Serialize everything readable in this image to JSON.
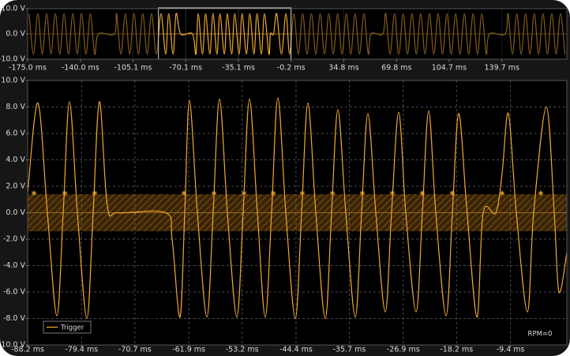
{
  "chart_data": [
    {
      "type": "line",
      "xlim": [
        -175.0,
        182.8
      ],
      "ylim": [
        -10,
        10
      ],
      "xticks": [
        {
          "value": -175.0,
          "label": "-175.0 ms"
        },
        {
          "value": -140.0,
          "label": "-140.0 ms"
        },
        {
          "value": -105.1,
          "label": "-105.1 ms"
        },
        {
          "value": -70.1,
          "label": "-70.1 ms"
        },
        {
          "value": -35.1,
          "label": "-35.1 ms"
        },
        {
          "value": -0.2,
          "label": "-0.2 ms"
        },
        {
          "value": 34.8,
          "label": "34.8 ms"
        },
        {
          "value": 69.8,
          "label": "69.8 ms"
        },
        {
          "value": 104.7,
          "label": "104.7 ms"
        },
        {
          "value": 139.7,
          "label": "139.7 ms"
        }
      ],
      "yticks": [
        {
          "value": 10,
          "label": "10.0 V"
        },
        {
          "value": 0,
          "label": "0.0 V"
        },
        {
          "value": -10,
          "label": "-10.0 V"
        }
      ],
      "grid": true,
      "selection": [
        -88.2,
        -0.2
      ],
      "series": [
        {
          "color": "#f0a830",
          "x": [
            -174.0,
            -171.1,
            -168.2,
            -165.3,
            -162.4,
            -159.5,
            -156.6,
            -153.7,
            -150.8,
            -147.9,
            -145.0,
            -142.1,
            -139.2,
            -136.3,
            -133.4,
            -130.5,
            -128.0,
            -117.4,
            -116.0,
            -113.1,
            -110.2,
            -107.3,
            -104.4,
            -101.5,
            -98.6,
            -95.7,
            -92.8,
            -89.6,
            -86.5,
            -83.4,
            -81.4,
            -78.5,
            -76.5,
            -73.4,
            -65.6,
            -63.3,
            -61.8,
            -59.0,
            -56.9,
            -54.1,
            -52.0,
            -49.4,
            -47.4,
            -44.5,
            -42.5,
            -39.6,
            -37.6,
            -34.7,
            -32.7,
            -29.8,
            -27.6,
            -24.8,
            -22.8,
            -19.9,
            -17.9,
            -14.9,
            -13.9,
            -11.8,
            -9.7,
            -6.6,
            -3.6,
            -1.2,
            1.7,
            4.6,
            7.5,
            10.4,
            13.3,
            16.2,
            19.1,
            22.0,
            24.9,
            27.8,
            30.7,
            33.6,
            36.5,
            39.4,
            42.3,
            45.2,
            48.1,
            51.0,
            52.9,
            60.7,
            62.6,
            65.5,
            68.4,
            71.3,
            74.2,
            77.1,
            80.0,
            82.9,
            85.8,
            88.7,
            91.6,
            94.5,
            97.4,
            100.3,
            103.2,
            106.1,
            109.0,
            111.9,
            114.8,
            117.7,
            120.6,
            123.5,
            126.4,
            129.3,
            131.4,
            141.9,
            143.8,
            146.7,
            149.6,
            152.5,
            155.4,
            158.3,
            161.2,
            164.1,
            167.0,
            169.9,
            172.8,
            175.7,
            178.6,
            181.5
          ],
          "values": [
            8,
            -8,
            8,
            -8,
            8,
            -8,
            8,
            -8,
            8,
            -8,
            8,
            -8,
            8,
            -8,
            8,
            -8,
            0,
            0,
            8,
            -8,
            8,
            -8,
            8,
            -8,
            8,
            -8,
            8,
            -8,
            8,
            -8,
            8,
            -8,
            8,
            0,
            0,
            -8,
            8,
            -8,
            8,
            -8,
            8,
            -8,
            8,
            -8,
            8,
            -8,
            8,
            -8,
            8,
            -8,
            8,
            -8,
            8,
            -8,
            8,
            -8,
            0,
            0,
            8,
            -8,
            8,
            -8,
            8,
            -8,
            8,
            -8,
            8,
            -8,
            8,
            -8,
            8,
            -8,
            8,
            -8,
            8,
            -8,
            8,
            -8,
            8,
            -8,
            0,
            0,
            8,
            -8,
            8,
            -8,
            8,
            -8,
            8,
            -8,
            8,
            -8,
            8,
            -8,
            8,
            -8,
            8,
            -8,
            8,
            -8,
            8,
            -8,
            8,
            -8,
            8,
            -8,
            0,
            0,
            8,
            -8,
            8,
            -8,
            8,
            -8,
            8,
            -8,
            8,
            -8,
            8,
            -8,
            8,
            -8
          ]
        }
      ]
    },
    {
      "type": "line",
      "xlim": [
        -88.2,
        -0.2
      ],
      "ylim": [
        -10,
        10
      ],
      "xticks": [
        {
          "value": -88.2,
          "label": "-88.2 ms"
        },
        {
          "value": -79.4,
          "label": "-79.4 ms"
        },
        {
          "value": -70.7,
          "label": "-70.7 ms"
        },
        {
          "value": -61.9,
          "label": "-61.9 ms"
        },
        {
          "value": -53.2,
          "label": "-53.2 ms"
        },
        {
          "value": -44.4,
          "label": "-44.4 ms"
        },
        {
          "value": -35.7,
          "label": "-35.7 ms"
        },
        {
          "value": -26.9,
          "label": "-26.9 ms"
        },
        {
          "value": -18.2,
          "label": "-18.2 ms"
        },
        {
          "value": -9.4,
          "label": "-9.4 ms"
        }
      ],
      "yticks": [
        {
          "value": 10,
          "label": "10.0 V"
        },
        {
          "value": 8,
          "label": "8.0 V"
        },
        {
          "value": 6,
          "label": "6.0 V"
        },
        {
          "value": 4,
          "label": "4.0 V"
        },
        {
          "value": 2,
          "label": "2.0 V"
        },
        {
          "value": 0,
          "label": "0.0 V"
        },
        {
          "value": -2,
          "label": "-2.0 V"
        },
        {
          "value": -4,
          "label": "-4.0 V"
        },
        {
          "value": -6,
          "label": "-6.0 V"
        },
        {
          "value": -8,
          "label": "-8.0 V"
        },
        {
          "value": -10,
          "label": "-10.0 V"
        }
      ],
      "grid": true,
      "legend": "bottom-left",
      "annotation": "RPM=0",
      "trigger_band": [
        -1.4,
        1.4
      ],
      "markers": {
        "x": [
          -87.17,
          -82.14,
          -77.25,
          -62.69,
          -57.79,
          -52.9,
          -48.13,
          -43.37,
          -38.47,
          -33.58,
          -28.68,
          -23.79,
          -18.89,
          -10.78,
          -4.47
        ],
        "y": [
          1.4,
          1.4,
          1.4,
          1.4,
          1.4,
          1.4,
          1.4,
          1.4,
          1.4,
          1.4,
          1.4,
          1.4,
          1.4,
          1.4,
          1.4
        ]
      },
      "series": [
        {
          "name": "Trigger",
          "color": "#f0a830",
          "x": [
            -88.2,
            -86.52,
            -84.98,
            -83.43,
            -82.4,
            -81.37,
            -80.08,
            -78.54,
            -77.51,
            -76.48,
            -75.19,
            -73.38,
            -65.65,
            -64.62,
            -63.33,
            -62.56,
            -61.79,
            -60.5,
            -58.95,
            -57.92,
            -56.89,
            -55.6,
            -54.06,
            -53.03,
            -52.0,
            -50.71,
            -49.42,
            -48.39,
            -47.36,
            -46.07,
            -44.52,
            -43.49,
            -42.46,
            -41.17,
            -39.63,
            -38.6,
            -37.57,
            -36.28,
            -34.73,
            -33.7,
            -32.67,
            -31.38,
            -29.84,
            -28.81,
            -27.64,
            -26.49,
            -24.81,
            -23.78,
            -22.75,
            -21.59,
            -19.91,
            -18.88,
            -17.85,
            -16.56,
            -14.88,
            -13.86,
            -11.79,
            -10.76,
            -9.73,
            -8.45,
            -6.64,
            -5.61,
            -3.55,
            -2.26,
            -1.49,
            -0.2
          ],
          "values": [
            1.5,
            8.3,
            0,
            -7.8,
            0,
            8.4,
            0,
            -8,
            0,
            8.4,
            0.5,
            0,
            0,
            -2,
            -7.9,
            0,
            8.5,
            0,
            -7.9,
            0,
            8.6,
            0,
            -7.9,
            0,
            8.6,
            0,
            -7.9,
            0,
            8.7,
            0,
            -8,
            0,
            8.3,
            0,
            -8,
            0,
            7.8,
            0,
            -7.9,
            0,
            7.5,
            0,
            -7.5,
            0,
            7.6,
            0,
            -7.5,
            0,
            7.7,
            0,
            -7.8,
            0,
            7.5,
            0.5,
            -7.9,
            0,
            0,
            3,
            7.5,
            0,
            -7.5,
            0,
            8.0,
            0,
            -6,
            -3
          ]
        }
      ]
    }
  ]
}
